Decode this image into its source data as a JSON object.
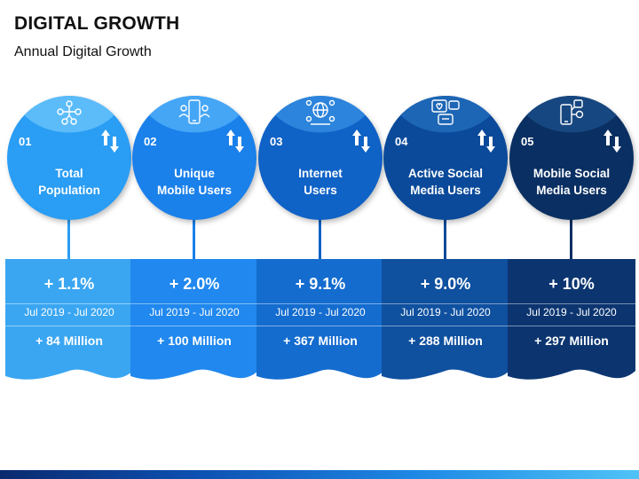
{
  "header": {
    "title": "DIGITAL GROWTH",
    "subtitle": "Annual Digital Growth"
  },
  "theme": {
    "footer_gradient": [
      "#0a2a6e",
      "#1e88e5",
      "#4fc3f7"
    ]
  },
  "items": [
    {
      "number": "01",
      "label_line1": "Total",
      "label_line2": "Population",
      "change": "+ 1.1%",
      "period": "Jul 2019 - Jul 2020",
      "amount": "+ 84 Million",
      "icon": "people-network-icon",
      "color": "#2a9df4",
      "cap_color": "#5cbcf9",
      "panel_color": "#3aa6f2"
    },
    {
      "number": "02",
      "label_line1": "Unique",
      "label_line2": "Mobile Users",
      "change": "+ 2.0%",
      "period": "Jul 2019 - Jul 2020",
      "amount": "+ 100 Million",
      "icon": "mobile-users-icon",
      "color": "#1a80ea",
      "cap_color": "#45a6f6",
      "panel_color": "#2088ee"
    },
    {
      "number": "03",
      "label_line1": "Internet",
      "label_line2": "Users",
      "change": "+ 9.1%",
      "period": "Jul 2019 - Jul 2020",
      "amount": "+ 367 Million",
      "icon": "internet-users-icon",
      "color": "#0f62c6",
      "cap_color": "#2c84dc",
      "panel_color": "#146ccf"
    },
    {
      "number": "04",
      "label_line1": "Active Social",
      "label_line2": "Media Users",
      "change": "+ 9.0%",
      "period": "Jul 2019 - Jul 2020",
      "amount": "+ 288 Million",
      "icon": "social-media-icon",
      "color": "#0b4a9a",
      "cap_color": "#1d66b6",
      "panel_color": "#0f509f"
    },
    {
      "number": "05",
      "label_line1": "Mobile Social",
      "label_line2": "Media Users",
      "change": "+ 10%",
      "period": "Jul 2019 - Jul 2020",
      "amount": "+ 297 Million",
      "icon": "mobile-social-icon",
      "color": "#0a2f62",
      "cap_color": "#174780",
      "panel_color": "#0c3570"
    }
  ]
}
